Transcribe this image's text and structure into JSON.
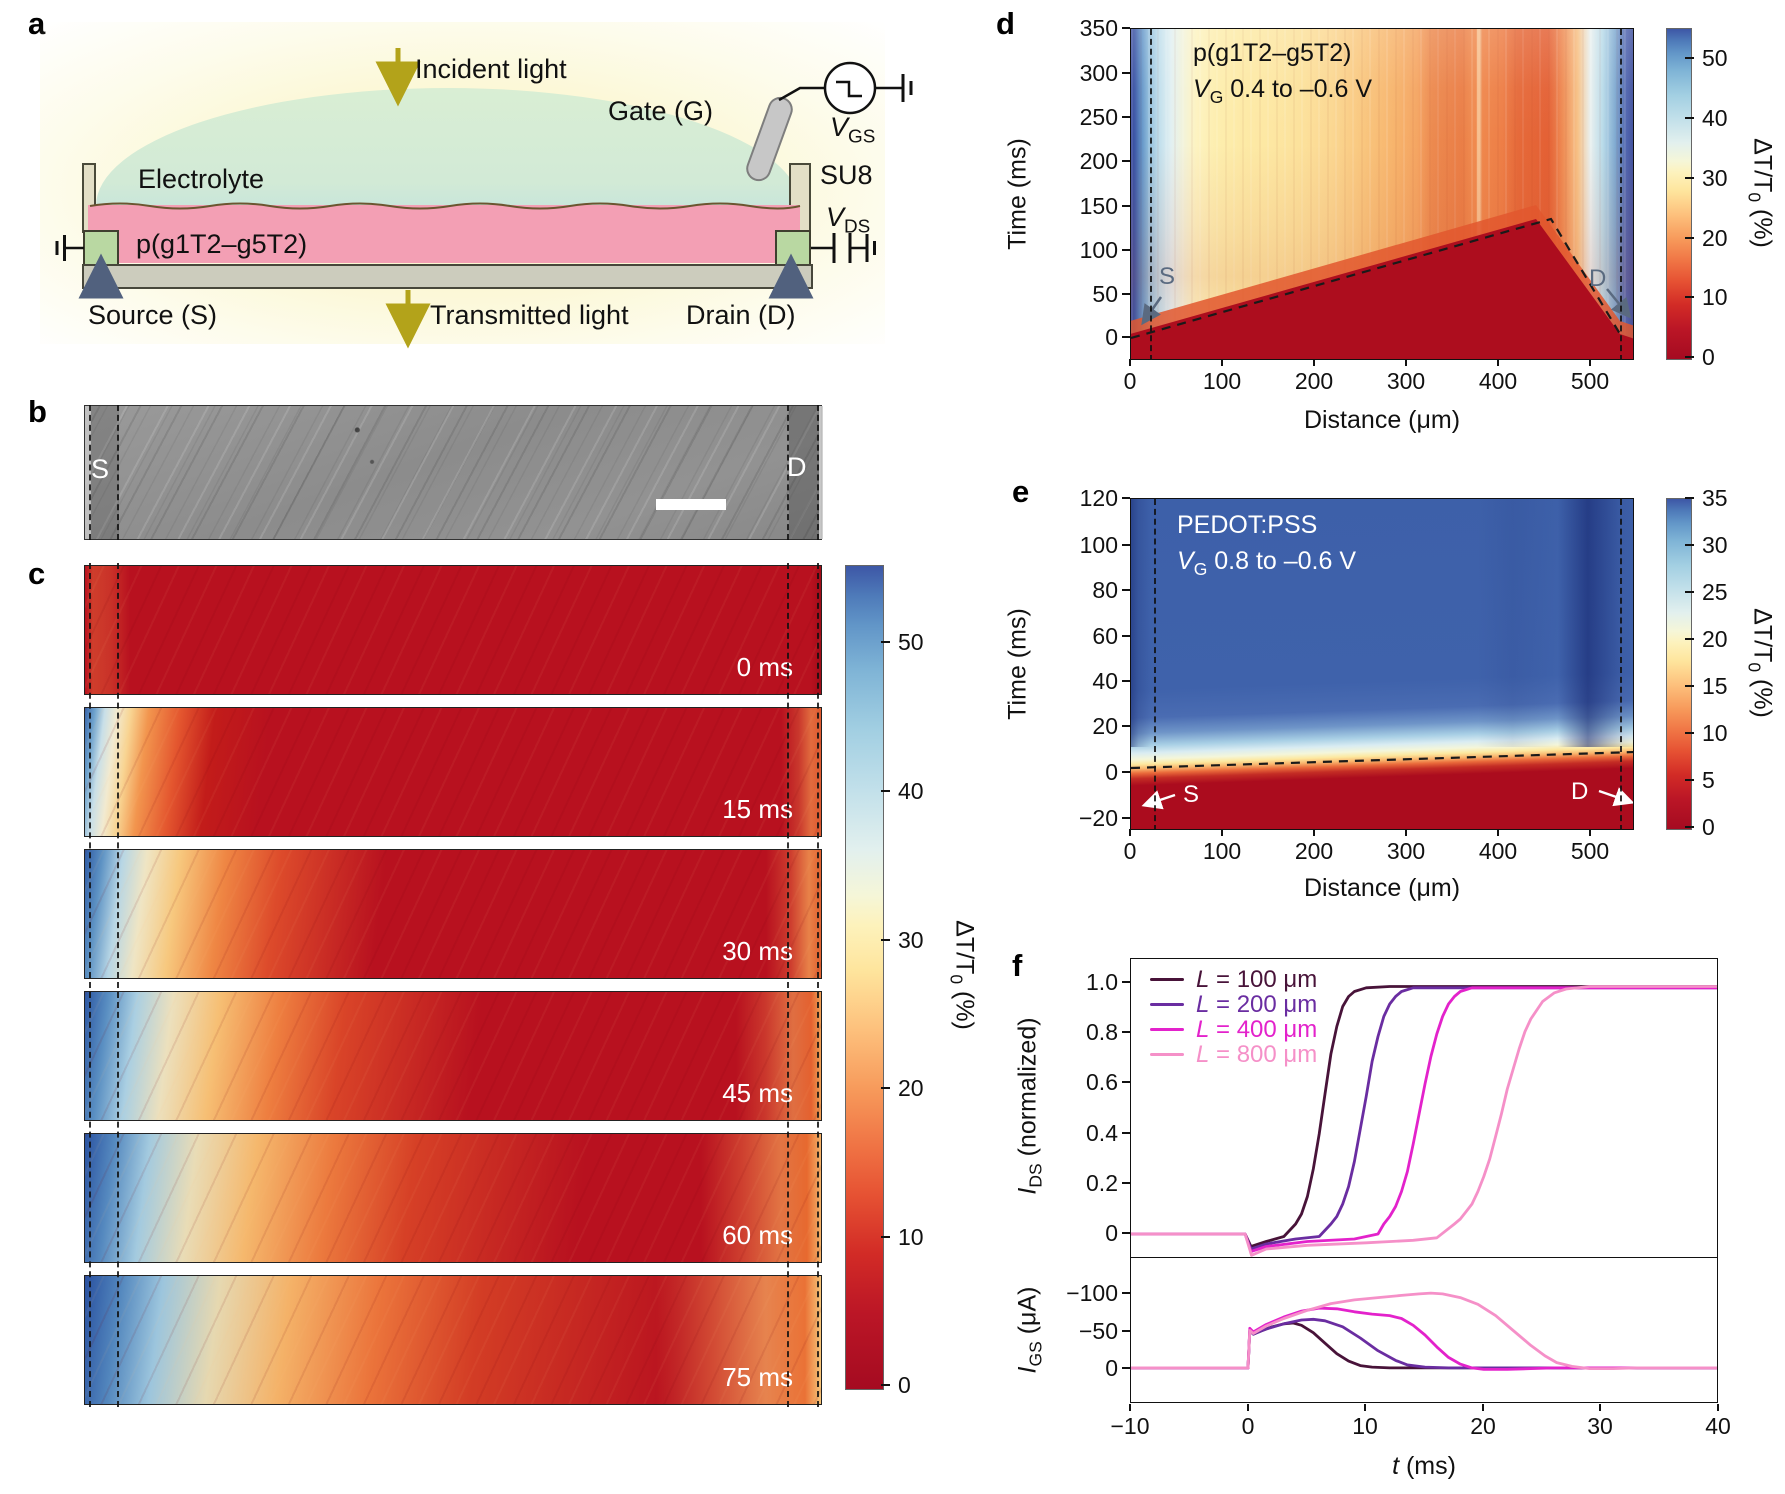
{
  "panel_a": {
    "label": "a",
    "incident_light": "Incident light",
    "gate": "Gate (G)",
    "electrolyte": "Electrolyte",
    "su8": "SU8",
    "vgs": {
      "sym": "V",
      "sub": "GS"
    },
    "vds": {
      "sym": "V",
      "sub": "DS"
    },
    "polymer": "p(g1T2–g5T2)",
    "source": "Source (S)",
    "transmitted_light": "Transmitted light",
    "drain": "Drain (D)"
  },
  "panel_b": {
    "label": "b",
    "s": "S",
    "d": "D"
  },
  "panel_c": {
    "label": "c",
    "frames": [
      "0 ms",
      "15 ms",
      "30 ms",
      "45 ms",
      "60 ms",
      "75 ms"
    ],
    "colorbar": {
      "ticks": [
        "50",
        "40",
        "30",
        "20",
        "10",
        "0"
      ],
      "title_main": "ΔT/T",
      "title_sub": "0",
      "title_unit": " (%)"
    }
  },
  "panel_d": {
    "label": "d",
    "title_line1": "p(g1T2–g5T2)",
    "title_line2": {
      "sym": "V",
      "sub": "G",
      "rest": " 0.4 to –0.6 V"
    },
    "ylabel": "Time (ms)",
    "xlabel": "Distance (μm)",
    "yticks": [
      "350",
      "300",
      "250",
      "200",
      "150",
      "100",
      "50",
      "0"
    ],
    "xticks": [
      "0",
      "100",
      "200",
      "300",
      "400",
      "500"
    ],
    "s": "S",
    "d": "D",
    "colorbar": {
      "ticks": [
        "50",
        "40",
        "30",
        "20",
        "10",
        "0"
      ],
      "title_main": "ΔT/T",
      "title_sub": "0",
      "title_unit": " (%)"
    }
  },
  "panel_e": {
    "label": "e",
    "title_line1": "PEDOT:PSS",
    "title_line2": {
      "sym": "V",
      "sub": "G",
      "rest": " 0.8 to –0.6 V"
    },
    "ylabel": "Time (ms)",
    "xlabel": "Distance (μm)",
    "yticks": [
      "120",
      "100",
      "80",
      "60",
      "40",
      "20",
      "0",
      "−20"
    ],
    "xticks": [
      "0",
      "100",
      "200",
      "300",
      "400",
      "500"
    ],
    "s": "S",
    "d": "D",
    "colorbar": {
      "ticks": [
        "35",
        "30",
        "25",
        "20",
        "15",
        "10",
        "5",
        "0"
      ],
      "title_main": "ΔT/T",
      "title_sub": "0",
      "title_unit": " (%)"
    }
  },
  "panel_f": {
    "label": "f",
    "legend": [
      {
        "it": "L",
        "rest": " = 100 μm"
      },
      {
        "it": "L",
        "rest": " = 200 μm"
      },
      {
        "it": "L",
        "rest": " = 400 μm"
      },
      {
        "it": "L",
        "rest": " = 800 μm"
      }
    ],
    "top": {
      "ylabel_it": "I",
      "ylabel_sub": "DS",
      "ylabel_rest": " (normalized)",
      "yticks": [
        "1.0",
        "0.8",
        "0.6",
        "0.4",
        "0.2",
        "0"
      ]
    },
    "bottom": {
      "ylabel_it": "I",
      "ylabel_sub": "GS",
      "ylabel_rest": " (μA)",
      "yticks": [
        "−100",
        "−50",
        "0"
      ]
    },
    "xticks": [
      "−10",
      "0",
      "10",
      "20",
      "30",
      "40"
    ],
    "xlabel_it": "t",
    "xlabel_rest": " (ms)"
  },
  "chart_data": [
    {
      "id": "c_frames",
      "type": "heatmap",
      "description": "Optical ΔT/T0 snapshots of channel between S and D",
      "frame_times_ms": [
        0,
        15,
        30,
        45,
        60,
        75
      ],
      "colorbar_label": "ΔT/T0 (%)",
      "colorbar_range": [
        0,
        55
      ]
    },
    {
      "id": "d",
      "type": "heatmap",
      "title": "p(g1T2–g5T2), VG 0.4 to −0.6 V",
      "xlabel": "Distance (μm)",
      "ylabel": "Time (ms)",
      "x_range": [
        0,
        548
      ],
      "y_range": [
        -26,
        350
      ],
      "colorbar_label": "ΔT/T0 (%)",
      "colorbar_range": [
        0,
        55
      ],
      "source_line_um": 20,
      "drain_line_um": 531,
      "front_line_points": [
        [
          0,
          0
        ],
        [
          440,
          135
        ],
        [
          531,
          5
        ]
      ]
    },
    {
      "id": "e",
      "type": "heatmap",
      "title": "PEDOT:PSS, VG 0.8 to −0.6 V",
      "xlabel": "Distance (μm)",
      "ylabel": "Time (ms)",
      "x_range": [
        0,
        548
      ],
      "y_range": [
        -25,
        120
      ],
      "colorbar_label": "ΔT/T0 (%)",
      "colorbar_range": [
        0,
        35
      ],
      "source_line_um": 25,
      "drain_line_um": 531,
      "front_line_points": [
        [
          0,
          2
        ],
        [
          548,
          9
        ]
      ]
    },
    {
      "id": "f_top",
      "type": "line",
      "xlabel": "t (ms)",
      "ylabel": "IDS (normalized)",
      "x_range": [
        -10,
        40
      ],
      "y_range": [
        -0.1,
        1.1
      ],
      "series": [
        {
          "name": "L = 100 μm",
          "color": "#481339",
          "points": [
            [
              -10,
              0
            ],
            [
              -0.3,
              0
            ],
            [
              0.2,
              -0.05
            ],
            [
              1.5,
              -0.03
            ],
            [
              3,
              -0.01
            ],
            [
              4,
              0.04
            ],
            [
              4.5,
              0.08
            ],
            [
              5,
              0.15
            ],
            [
              5.5,
              0.26
            ],
            [
              6,
              0.4
            ],
            [
              6.5,
              0.56
            ],
            [
              7,
              0.72
            ],
            [
              7.5,
              0.83
            ],
            [
              8,
              0.91
            ],
            [
              8.5,
              0.95
            ],
            [
              9,
              0.97
            ],
            [
              10,
              0.985
            ],
            [
              12,
              0.99
            ],
            [
              40,
              0.99
            ]
          ]
        },
        {
          "name": "L = 200 μm",
          "color": "#6a2da1",
          "points": [
            [
              -10,
              0
            ],
            [
              -0.3,
              0
            ],
            [
              0.2,
              -0.06
            ],
            [
              1.5,
              -0.04
            ],
            [
              4,
              -0.02
            ],
            [
              6,
              -0.01
            ],
            [
              7,
              0.04
            ],
            [
              7.5,
              0.07
            ],
            [
              8,
              0.12
            ],
            [
              8.5,
              0.19
            ],
            [
              9,
              0.29
            ],
            [
              9.5,
              0.42
            ],
            [
              10,
              0.55
            ],
            [
              10.5,
              0.69
            ],
            [
              11,
              0.79
            ],
            [
              11.5,
              0.87
            ],
            [
              12,
              0.92
            ],
            [
              12.5,
              0.95
            ],
            [
              13,
              0.97
            ],
            [
              14,
              0.985
            ],
            [
              40,
              0.985
            ]
          ]
        },
        {
          "name": "L = 400 μm",
          "color": "#e322cb",
          "points": [
            [
              -10,
              0
            ],
            [
              -0.3,
              0
            ],
            [
              0.2,
              -0.07
            ],
            [
              1.5,
              -0.05
            ],
            [
              5,
              -0.03
            ],
            [
              9,
              -0.02
            ],
            [
              11,
              0
            ],
            [
              11.5,
              0.04
            ],
            [
              12,
              0.07
            ],
            [
              12.5,
              0.11
            ],
            [
              13,
              0.17
            ],
            [
              13.5,
              0.25
            ],
            [
              14,
              0.36
            ],
            [
              14.5,
              0.48
            ],
            [
              15,
              0.6
            ],
            [
              15.5,
              0.71
            ],
            [
              16,
              0.8
            ],
            [
              16.5,
              0.87
            ],
            [
              17,
              0.92
            ],
            [
              17.5,
              0.95
            ],
            [
              18,
              0.97
            ],
            [
              19,
              0.985
            ],
            [
              40,
              0.985
            ]
          ]
        },
        {
          "name": "L = 800 μm",
          "color": "#f590c8",
          "points": [
            [
              -10,
              0
            ],
            [
              -0.3,
              0
            ],
            [
              0.25,
              -0.085
            ],
            [
              1.5,
              -0.06
            ],
            [
              5,
              -0.045
            ],
            [
              10,
              -0.035
            ],
            [
              14,
              -0.025
            ],
            [
              16,
              -0.015
            ],
            [
              17.5,
              0.04
            ],
            [
              18,
              0.06
            ],
            [
              18.5,
              0.09
            ],
            [
              19,
              0.12
            ],
            [
              19.5,
              0.17
            ],
            [
              20,
              0.23
            ],
            [
              20.5,
              0.3
            ],
            [
              21,
              0.39
            ],
            [
              21.5,
              0.48
            ],
            [
              22,
              0.58
            ],
            [
              22.5,
              0.66
            ],
            [
              23,
              0.74
            ],
            [
              23.5,
              0.81
            ],
            [
              24,
              0.86
            ],
            [
              25,
              0.93
            ],
            [
              26,
              0.965
            ],
            [
              27,
              0.98
            ],
            [
              29,
              0.99
            ],
            [
              40,
              0.99
            ]
          ]
        }
      ]
    },
    {
      "id": "f_bottom",
      "type": "line",
      "xlabel": "t (ms)",
      "ylabel": "IGS (μA)",
      "x_range": [
        -10,
        40
      ],
      "y_range": [
        47,
        -147
      ],
      "series": [
        {
          "name": "L = 100 μm",
          "color": "#481339",
          "points": [
            [
              -10,
              0
            ],
            [
              -0.05,
              0
            ],
            [
              0.1,
              -50
            ],
            [
              0.4,
              -45
            ],
            [
              1,
              -49
            ],
            [
              2,
              -55
            ],
            [
              3,
              -59
            ],
            [
              3.8,
              -60
            ],
            [
              4.5,
              -57
            ],
            [
              5.5,
              -47
            ],
            [
              6.5,
              -33
            ],
            [
              7.5,
              -19
            ],
            [
              8.5,
              -9
            ],
            [
              9.5,
              -3
            ],
            [
              10.5,
              -1
            ],
            [
              12,
              0
            ],
            [
              40,
              0
            ]
          ]
        },
        {
          "name": "L = 200 μm",
          "color": "#6a2da1",
          "points": [
            [
              -10,
              0
            ],
            [
              -0.05,
              0
            ],
            [
              0.1,
              -50
            ],
            [
              0.4,
              -45
            ],
            [
              1.5,
              -52
            ],
            [
              3,
              -59
            ],
            [
              4.5,
              -64
            ],
            [
              5.5,
              -65
            ],
            [
              6.5,
              -63
            ],
            [
              8,
              -55
            ],
            [
              9.5,
              -40
            ],
            [
              11,
              -23
            ],
            [
              12.5,
              -10
            ],
            [
              13.5,
              -4
            ],
            [
              15,
              -1
            ],
            [
              17,
              0
            ],
            [
              40,
              0
            ]
          ]
        },
        {
          "name": "L = 400 μm",
          "color": "#e322cb",
          "points": [
            [
              -10,
              0
            ],
            [
              -0.05,
              0
            ],
            [
              0.1,
              -53
            ],
            [
              0.4,
              -48
            ],
            [
              1.5,
              -58
            ],
            [
              3,
              -68
            ],
            [
              4.5,
              -76
            ],
            [
              6,
              -80
            ],
            [
              7.5,
              -79
            ],
            [
              9,
              -75
            ],
            [
              10.5,
              -72
            ],
            [
              12,
              -70
            ],
            [
              13,
              -66
            ],
            [
              14,
              -57
            ],
            [
              15,
              -44
            ],
            [
              16,
              -28
            ],
            [
              17,
              -14
            ],
            [
              18,
              -5
            ],
            [
              19,
              0
            ],
            [
              20,
              2
            ],
            [
              22,
              2
            ],
            [
              24,
              1
            ],
            [
              26,
              0
            ],
            [
              40,
              0
            ]
          ]
        },
        {
          "name": "L = 800 μm",
          "color": "#f590c8",
          "points": [
            [
              -10,
              0
            ],
            [
              -0.05,
              0
            ],
            [
              0.1,
              -50
            ],
            [
              0.4,
              -46
            ],
            [
              1.5,
              -56
            ],
            [
              3,
              -66
            ],
            [
              5,
              -77
            ],
            [
              7,
              -86
            ],
            [
              9,
              -91
            ],
            [
              11,
              -94
            ],
            [
              13,
              -97
            ],
            [
              14.5,
              -99
            ],
            [
              15.5,
              -100
            ],
            [
              16.5,
              -99
            ],
            [
              18,
              -94
            ],
            [
              19.5,
              -85
            ],
            [
              21,
              -70
            ],
            [
              22.5,
              -50
            ],
            [
              24,
              -30
            ],
            [
              25.2,
              -16
            ],
            [
              26.2,
              -7
            ],
            [
              27.5,
              -2
            ],
            [
              29,
              1
            ],
            [
              31,
              1
            ],
            [
              33,
              0
            ],
            [
              40,
              0
            ]
          ]
        }
      ]
    }
  ]
}
